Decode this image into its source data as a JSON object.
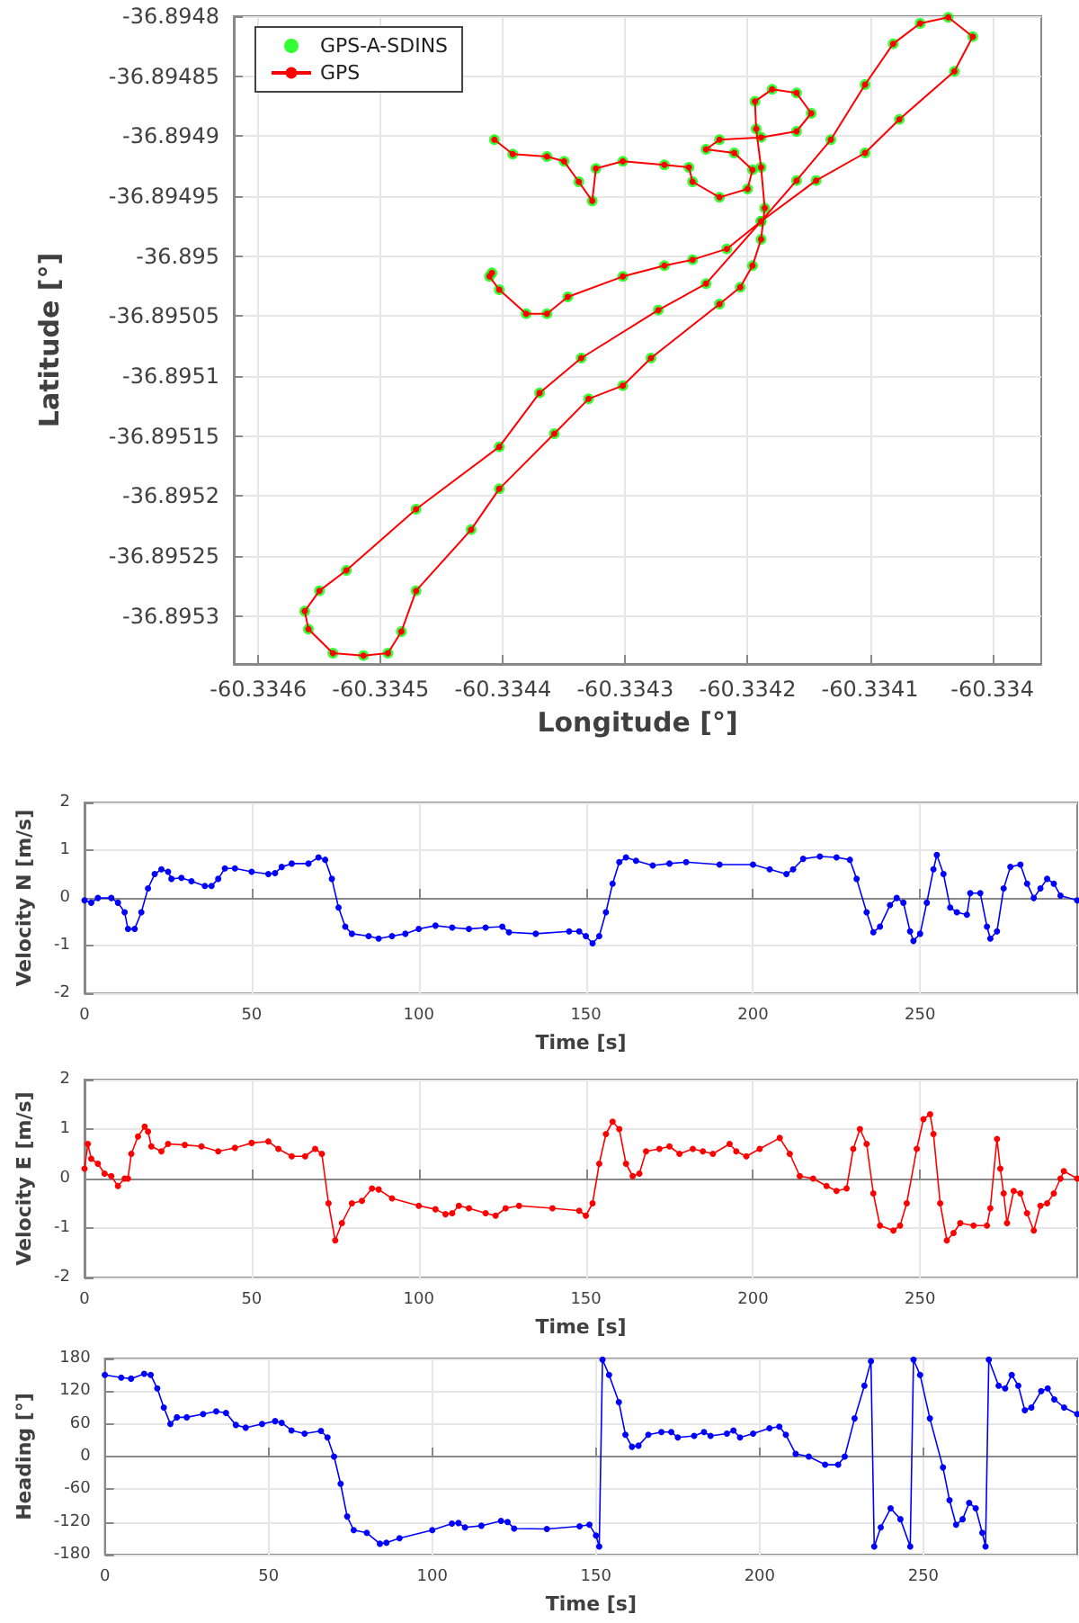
{
  "chart_data": [
    {
      "type": "scatter",
      "xlabel": "Longitude [°]",
      "ylabel": "Latitude [°]",
      "legend": "top left",
      "grid": true,
      "marker": "circle",
      "xlim": [
        -60.33462,
        -60.33396
      ],
      "xticks": [
        -60.3346,
        -60.3345,
        -60.3344,
        -60.3343,
        -60.3342,
        -60.3341,
        -60.334
      ],
      "ylim": [
        -36.89534,
        -36.8948
      ],
      "yticks": [
        -36.8953,
        -36.89525,
        -36.8952,
        -36.89515,
        -36.8951,
        -36.89505,
        -36.895,
        -36.89495,
        -36.8949,
        -36.89485,
        -36.8948
      ],
      "x": [
        -60.334407,
        -60.334392,
        -60.334364,
        -60.33435,
        -60.334338,
        -60.334327,
        -60.334324,
        -60.334302,
        -60.334268,
        -60.334248,
        -60.334245,
        -60.334223,
        -60.3342,
        -60.334196,
        -60.334211,
        -60.334234,
        -60.334223,
        -60.334189,
        -60.33416,
        -60.334148,
        -60.33416,
        -60.33418,
        -60.334194,
        -60.334193,
        -60.334189,
        -60.334186,
        -60.334189,
        -60.334196,
        -60.334206,
        -60.334223,
        -60.334279,
        -60.334302,
        -60.33433,
        -60.334358,
        -60.334403,
        -60.334426,
        -60.334471,
        -60.334483,
        -60.334494,
        -60.334514,
        -60.334539,
        -60.334559,
        -60.334562,
        -60.33455,
        -60.334528,
        -60.334471,
        -60.334403,
        -60.33437,
        -60.334336,
        -60.334273,
        -60.334234,
        -60.334189,
        -60.334144,
        -60.334104,
        -60.334076,
        -60.334031,
        -60.334016,
        -60.334036,
        -60.334059,
        -60.334081,
        -60.334104,
        -60.334132,
        -60.33416,
        -60.334189,
        -60.334217,
        -60.334245,
        -60.334268,
        -60.334302,
        -60.334347,
        -60.334364,
        -60.334381,
        -60.334403,
        -60.334411,
        -60.334409
      ],
      "series": [
        {
          "name": "GPS-A-SDINS",
          "type": "scatter",
          "color": "#00ff00",
          "values": [
            -36.894903,
            -36.894915,
            -36.894917,
            -36.894921,
            -36.894938,
            -36.894954,
            -36.894927,
            -36.894921,
            -36.894924,
            -36.894926,
            -36.894938,
            -36.894951,
            -36.894944,
            -36.894928,
            -36.894914,
            -36.894911,
            -36.894903,
            -36.894901,
            -36.894896,
            -36.894881,
            -36.894864,
            -36.894861,
            -36.894871,
            -36.894894,
            -36.894926,
            -36.89496,
            -36.894986,
            -36.895008,
            -36.895026,
            -36.89504,
            -36.895085,
            -36.895108,
            -36.895119,
            -36.895148,
            -36.895194,
            -36.895228,
            -36.895279,
            -36.895313,
            -36.895331,
            -36.895333,
            -36.895331,
            -36.895311,
            -36.895296,
            -36.895279,
            -36.895262,
            -36.895211,
            -36.895159,
            -36.895114,
            -36.895085,
            -36.895045,
            -36.895023,
            -36.894971,
            -36.894937,
            -36.894914,
            -36.894886,
            -36.894846,
            -36.894817,
            -36.894801,
            -36.894806,
            -36.894823,
            -36.894857,
            -36.894903,
            -36.894937,
            -36.894971,
            -36.894994,
            -36.895003,
            -36.895008,
            -36.895017,
            -36.895034,
            -36.895048,
            -36.895048,
            -36.895028,
            -36.895017,
            -36.895014
          ]
        },
        {
          "name": "GPS",
          "type": "line",
          "color": "#ff0000",
          "values": [
            -36.894903,
            -36.894915,
            -36.894917,
            -36.894921,
            -36.894938,
            -36.894954,
            -36.894927,
            -36.894921,
            -36.894924,
            -36.894926,
            -36.894938,
            -36.894951,
            -36.894944,
            -36.894928,
            -36.894914,
            -36.894911,
            -36.894903,
            -36.894901,
            -36.894896,
            -36.894881,
            -36.894864,
            -36.894861,
            -36.894871,
            -36.894894,
            -36.894926,
            -36.89496,
            -36.894986,
            -36.895008,
            -36.895026,
            -36.89504,
            -36.895085,
            -36.895108,
            -36.895119,
            -36.895148,
            -36.895194,
            -36.895228,
            -36.895279,
            -36.895313,
            -36.895331,
            -36.895333,
            -36.895331,
            -36.895311,
            -36.895296,
            -36.895279,
            -36.895262,
            -36.895211,
            -36.895159,
            -36.895114,
            -36.895085,
            -36.895045,
            -36.895023,
            -36.894971,
            -36.894937,
            -36.894914,
            -36.894886,
            -36.894846,
            -36.894817,
            -36.894801,
            -36.894806,
            -36.894823,
            -36.894857,
            -36.894903,
            -36.894937,
            -36.894971,
            -36.894994,
            -36.895003,
            -36.895008,
            -36.895017,
            -36.895034,
            -36.895048,
            -36.895048,
            -36.895028,
            -36.895017,
            -36.895014
          ]
        }
      ]
    },
    {
      "type": "line",
      "xlabel": "Time [s]",
      "ylabel": "Velocity N [m/s]",
      "grid": true,
      "marker": "circle",
      "xlim": [
        0,
        297
      ],
      "xticks": [
        0,
        50,
        100,
        150,
        200,
        250
      ],
      "ylim": [
        -2,
        2
      ],
      "yticks": [
        -2,
        -1,
        0,
        1,
        2
      ],
      "series": [
        {
          "color": "#0000ff",
          "x": [
            0,
            2,
            4,
            8,
            10,
            12,
            13,
            15,
            17,
            19,
            21,
            23,
            25,
            26,
            29,
            32,
            36,
            38,
            40,
            42,
            45,
            50,
            55,
            57,
            59,
            62,
            67,
            70,
            72,
            74,
            76,
            78,
            80,
            85,
            88,
            92,
            96,
            100,
            105,
            110,
            115,
            120,
            125,
            127,
            135,
            145,
            148,
            150,
            152,
            154,
            156,
            158,
            160,
            162,
            165,
            170,
            175,
            180,
            190,
            200,
            205,
            210,
            212,
            215,
            220,
            225,
            229,
            231,
            234,
            236,
            238,
            241,
            243,
            245,
            247,
            248,
            250,
            252,
            254,
            255,
            257,
            259,
            261,
            264,
            265,
            268,
            270,
            271,
            273,
            275,
            277,
            280,
            282,
            284,
            286,
            288,
            290,
            292,
            297
          ],
          "values": [
            -0.05,
            -0.1,
            0,
            0,
            -0.1,
            -0.3,
            -0.65,
            -0.65,
            -0.3,
            0.2,
            0.5,
            0.6,
            0.55,
            0.4,
            0.42,
            0.35,
            0.25,
            0.25,
            0.4,
            0.62,
            0.62,
            0.55,
            0.5,
            0.52,
            0.65,
            0.72,
            0.72,
            0.85,
            0.8,
            0.4,
            -0.2,
            -0.6,
            -0.75,
            -0.8,
            -0.85,
            -0.8,
            -0.75,
            -0.65,
            -0.58,
            -0.62,
            -0.65,
            -0.62,
            -0.6,
            -0.72,
            -0.75,
            -0.7,
            -0.7,
            -0.8,
            -0.95,
            -0.8,
            -0.3,
            0.3,
            0.75,
            0.85,
            0.78,
            0.68,
            0.72,
            0.75,
            0.7,
            0.7,
            0.6,
            0.5,
            0.6,
            0.82,
            0.87,
            0.85,
            0.8,
            0.4,
            -0.3,
            -0.72,
            -0.6,
            -0.15,
            0,
            -0.1,
            -0.7,
            -0.9,
            -0.75,
            -0.1,
            0.6,
            0.9,
            0.5,
            -0.2,
            -0.3,
            -0.35,
            0.1,
            0.1,
            -0.6,
            -0.85,
            -0.7,
            0.2,
            0.65,
            0.7,
            0.3,
            0,
            0.2,
            0.4,
            0.3,
            0.05,
            -0.05
          ]
        }
      ]
    },
    {
      "type": "line",
      "xlabel": "Time [s]",
      "ylabel": "Velocity E [m/s]",
      "grid": true,
      "marker": "circle",
      "xlim": [
        0,
        297
      ],
      "xticks": [
        0,
        50,
        100,
        150,
        200,
        250
      ],
      "ylim": [
        -2,
        2
      ],
      "yticks": [
        -2,
        -1,
        0,
        1,
        2
      ],
      "series": [
        {
          "color": "#ff0000",
          "x": [
            0,
            1,
            2,
            4,
            6,
            8,
            10,
            12,
            13,
            14,
            16,
            18,
            19,
            20,
            23,
            25,
            30,
            35,
            40,
            45,
            50,
            55,
            58,
            62,
            66,
            69,
            71,
            73,
            75,
            77,
            80,
            83,
            86,
            88,
            92,
            100,
            105,
            108,
            110,
            112,
            115,
            120,
            123,
            126,
            130,
            140,
            148,
            150,
            152,
            154,
            156,
            158,
            160,
            162,
            164,
            166,
            168,
            172,
            175,
            178,
            182,
            185,
            188,
            193,
            195,
            198,
            202,
            208,
            211,
            214,
            218,
            222,
            225,
            228,
            230,
            232,
            234,
            236,
            238,
            242,
            244,
            246,
            249,
            251,
            253,
            254,
            256,
            258,
            260,
            262,
            266,
            270,
            271,
            273,
            274,
            275,
            276,
            278,
            280,
            282,
            284,
            286,
            288,
            290,
            292,
            293,
            297
          ],
          "values": [
            0.2,
            0.7,
            0.4,
            0.3,
            0.1,
            0.05,
            -0.15,
            0,
            0,
            0.5,
            0.85,
            1.05,
            0.95,
            0.65,
            0.55,
            0.7,
            0.68,
            0.65,
            0.55,
            0.62,
            0.72,
            0.75,
            0.6,
            0.45,
            0.45,
            0.6,
            0.5,
            -0.5,
            -1.25,
            -0.9,
            -0.5,
            -0.45,
            -0.2,
            -0.22,
            -0.4,
            -0.55,
            -0.62,
            -0.72,
            -0.7,
            -0.55,
            -0.6,
            -0.7,
            -0.75,
            -0.6,
            -0.55,
            -0.6,
            -0.65,
            -0.75,
            -0.5,
            0.3,
            0.9,
            1.15,
            1,
            0.3,
            0.05,
            0.1,
            0.55,
            0.6,
            0.65,
            0.5,
            0.6,
            0.55,
            0.5,
            0.7,
            0.55,
            0.45,
            0.6,
            0.82,
            0.5,
            0.05,
            0,
            -0.15,
            -0.25,
            -0.2,
            0.6,
            1,
            0.7,
            -0.3,
            -0.95,
            -1.05,
            -0.95,
            -0.5,
            0.6,
            1.2,
            1.3,
            0.9,
            -0.5,
            -1.25,
            -1.1,
            -0.9,
            -0.95,
            -0.95,
            -0.6,
            0.8,
            0.2,
            -0.3,
            -0.9,
            -0.25,
            -0.3,
            -0.7,
            -1.05,
            -0.55,
            -0.5,
            -0.3,
            0,
            0.15,
            0
          ]
        }
      ]
    },
    {
      "type": "line",
      "xlabel": "Time [s]",
      "ylabel": "Heading [°]",
      "grid": true,
      "marker": "circle",
      "xlim": [
        0,
        297
      ],
      "xticks": [
        0,
        50,
        100,
        150,
        200,
        250
      ],
      "ylim": [
        -180,
        180
      ],
      "yticks": [
        -180,
        -120,
        -60,
        0,
        60,
        120,
        180
      ],
      "series": [
        {
          "color": "#0000ff",
          "x": [
            0,
            5,
            8,
            12,
            14,
            16,
            18,
            20,
            22,
            25,
            30,
            34,
            37,
            40,
            43,
            48,
            52,
            54,
            57,
            61,
            66,
            68,
            70,
            72,
            74,
            76,
            80,
            84,
            86,
            90,
            100,
            106,
            108,
            110,
            115,
            121,
            123,
            125,
            135,
            145,
            148,
            150,
            151,
            152,
            154,
            157,
            159,
            161,
            163,
            166,
            170,
            173,
            175,
            180,
            183,
            185,
            190,
            192,
            194,
            198,
            203,
            206,
            208,
            211,
            215,
            220,
            224,
            226,
            229,
            232,
            234,
            235,
            237,
            240,
            243,
            246,
            247,
            249,
            252,
            256,
            258,
            260,
            262,
            264,
            266,
            268,
            269,
            270,
            273,
            275,
            277,
            279,
            281,
            283,
            286,
            288,
            290,
            293,
            297
          ],
          "values": [
            150,
            145,
            143,
            152,
            150,
            125,
            90,
            60,
            72,
            72,
            78,
            83,
            80,
            58,
            53,
            60,
            65,
            62,
            48,
            42,
            47,
            35,
            0,
            -50,
            -110,
            -135,
            -140,
            -160,
            -158,
            -150,
            -135,
            -123,
            -122,
            -130,
            -127,
            -118,
            -120,
            -132,
            -133,
            -128,
            -125,
            -145,
            -165,
            178,
            150,
            100,
            40,
            18,
            20,
            40,
            45,
            45,
            35,
            38,
            45,
            38,
            42,
            48,
            35,
            42,
            52,
            55,
            40,
            5,
            0,
            -15,
            -15,
            0,
            70,
            130,
            175,
            -165,
            -130,
            -95,
            -115,
            -165,
            178,
            150,
            70,
            -20,
            -80,
            -125,
            -115,
            -85,
            -95,
            -140,
            -165,
            178,
            130,
            125,
            150,
            130,
            85,
            90,
            120,
            125,
            105,
            90,
            78
          ]
        }
      ]
    }
  ]
}
